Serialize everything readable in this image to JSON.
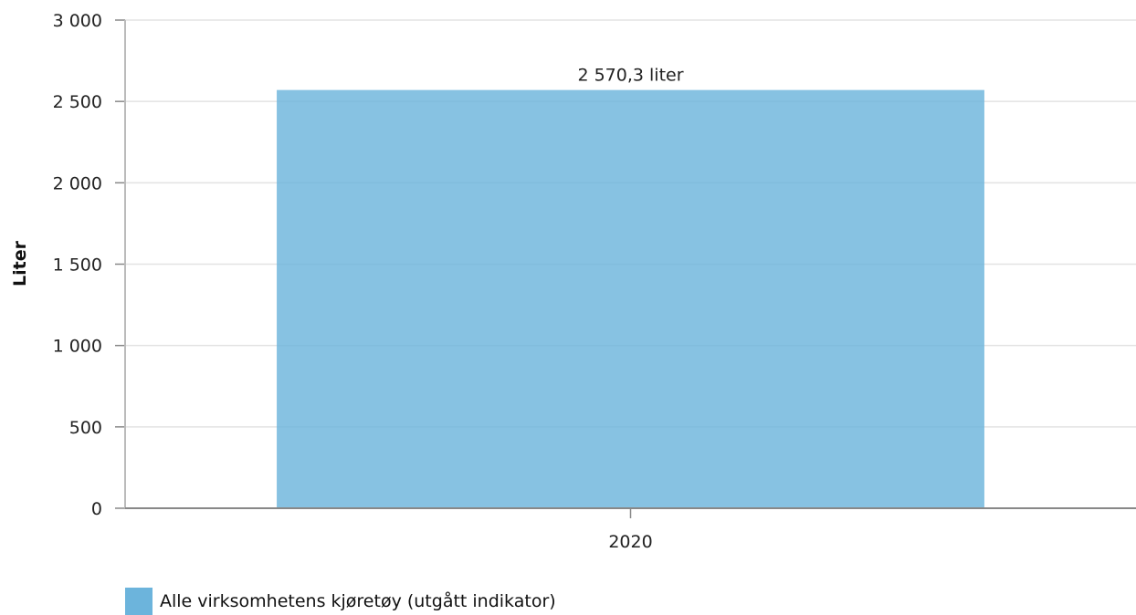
{
  "chart_data": {
    "type": "bar",
    "categories": [
      "2020"
    ],
    "series": [
      {
        "name": "Alle virksomhetens kjøretøy (utgått indikator)",
        "values": [
          2570.3
        ],
        "data_labels": [
          "2 570,3 liter"
        ],
        "color": "#6cb4dc"
      }
    ],
    "ylabel": "Liter",
    "xlabel": "",
    "ylim": [
      0,
      3000
    ],
    "yticks": [
      0,
      500,
      1000,
      1500,
      2000,
      2500,
      3000
    ],
    "ytick_labels": [
      "0",
      "500",
      "1 000",
      "1 500",
      "2 000",
      "2 500",
      "3 000"
    ],
    "grid": true,
    "legend_position": "bottom-left"
  },
  "colors": {
    "bar": "#6cb4dc",
    "grid": "#e3e3e3",
    "axis": "#888888"
  }
}
